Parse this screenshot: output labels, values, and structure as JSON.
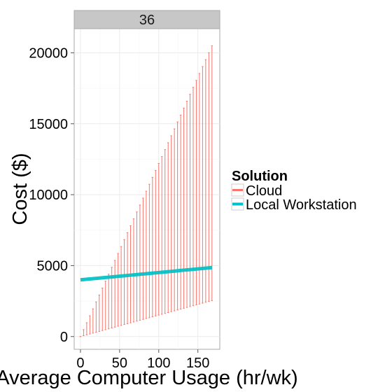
{
  "chart_data": {
    "type": "errorbar+line",
    "facet_label": "36",
    "xlabel": "Average Computer Usage (hr/wk)",
    "ylabel": "Cost ($)",
    "xlim": [
      -8,
      178
    ],
    "ylim": [
      -900,
      21700
    ],
    "x_ticks": [
      0,
      50,
      100,
      150
    ],
    "y_ticks": [
      0,
      5000,
      10000,
      15000,
      20000
    ],
    "grid": true,
    "legend": {
      "title": "Solution",
      "position": "right",
      "entries": [
        {
          "name": "Cloud",
          "color": "#F8766D"
        },
        {
          "name": "Local Workstation",
          "color": "#00BFC4"
        }
      ]
    },
    "series": [
      {
        "name": "Cloud",
        "kind": "errorbar",
        "color": "#F8766D",
        "x_start": 0,
        "x_end": 168,
        "x_step": 4,
        "lower_per_hr": 15.1,
        "upper_per_hr": 122.0
      },
      {
        "name": "Local Workstation",
        "kind": "line",
        "color": "#00BFC4",
        "x": [
          0,
          168
        ],
        "y": [
          4000,
          4860
        ]
      }
    ]
  }
}
